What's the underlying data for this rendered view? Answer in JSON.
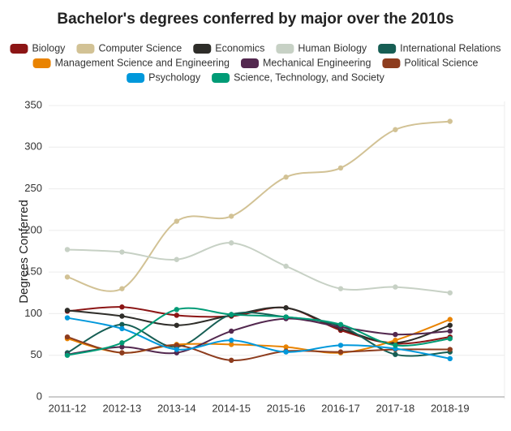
{
  "chart_data": {
    "type": "line",
    "title": "Bachelor's degrees conferred by major over the 2010s",
    "y_label": "Degrees Conferred",
    "categories": [
      "2011-12",
      "2012-13",
      "2013-14",
      "2014-15",
      "2015-16",
      "2016-17",
      "2017-18",
      "2018-19"
    ],
    "series": [
      {
        "name": "Biology",
        "color": "#8c1515",
        "values": [
          103,
          108,
          98,
          97,
          107,
          80,
          64,
          72
        ]
      },
      {
        "name": "Computer Science",
        "color": "#d2c295",
        "values": [
          144,
          130,
          211,
          217,
          264,
          275,
          321,
          331
        ]
      },
      {
        "name": "Economics",
        "color": "#2e2d29",
        "values": [
          104,
          97,
          86,
          98,
          107,
          82,
          65,
          86
        ]
      },
      {
        "name": "Human Biology",
        "color": "#c7d1c5",
        "values": [
          177,
          174,
          165,
          185,
          157,
          130,
          132,
          125
        ]
      },
      {
        "name": "International Relations",
        "color": "#175e54",
        "values": [
          53,
          87,
          60,
          99,
          96,
          85,
          51,
          54
        ]
      },
      {
        "name": "Management Science and Engineering",
        "color": "#e98300",
        "values": [
          70,
          53,
          63,
          63,
          60,
          53,
          68,
          93
        ]
      },
      {
        "name": "Mechanical Engineering",
        "color": "#53284f",
        "values": [
          51,
          60,
          53,
          79,
          94,
          84,
          75,
          79
        ]
      },
      {
        "name": "Political Science",
        "color": "#8d3c1e",
        "values": [
          72,
          53,
          62,
          44,
          55,
          54,
          57,
          57
        ]
      },
      {
        "name": "Psychology",
        "color": "#0098db",
        "values": [
          95,
          82,
          57,
          68,
          54,
          62,
          58,
          46
        ]
      },
      {
        "name": "Science, Technology, and Society",
        "color": "#009b76",
        "values": [
          50,
          65,
          105,
          99,
          96,
          87,
          62,
          70
        ]
      }
    ],
    "ylim": [
      0,
      350
    ],
    "yticks": [
      0,
      50,
      100,
      150,
      200,
      250,
      300,
      350
    ],
    "grid": true
  }
}
